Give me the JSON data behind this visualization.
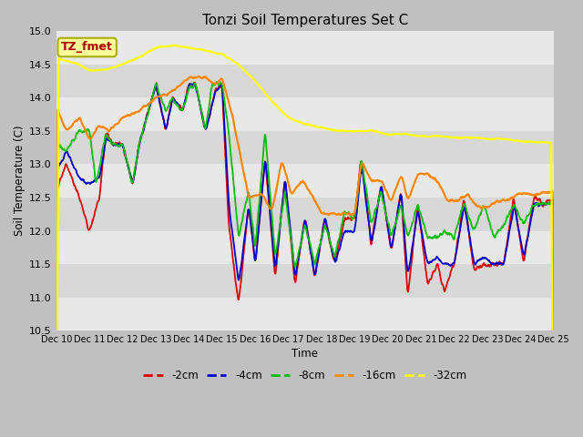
{
  "title": "Tonzi Soil Temperatures Set C",
  "xlabel": "Time",
  "ylabel": "Soil Temperature (C)",
  "ylim": [
    10.5,
    15.0
  ],
  "fig_bg_color": "#c8c8c8",
  "plot_bg_color": "#d8d8d8",
  "band_colors": [
    "#d8d8d8",
    "#e8e8e8"
  ],
  "annotation_text": "TZ_fmet",
  "annotation_color": "#aa0000",
  "annotation_bg": "#ffff99",
  "annotation_edge": "#aaaa00",
  "legend_entries": [
    "-2cm",
    "-4cm",
    "-8cm",
    "-16cm",
    "-32cm"
  ],
  "line_colors": [
    "#dd0000",
    "#0000cc",
    "#00bb00",
    "#ff8800",
    "#ffff00"
  ],
  "n_points": 1500,
  "x_tick_labels": [
    "Dec 10",
    "Dec 11",
    "Dec 12",
    "Dec 13",
    "Dec 14",
    "Dec 15",
    "Dec 16",
    "Dec 17",
    "Dec 18",
    "Dec 19",
    "Dec 20",
    "Dec 21",
    "Dec 22",
    "Dec 23",
    "Dec 24",
    "Dec 25"
  ]
}
